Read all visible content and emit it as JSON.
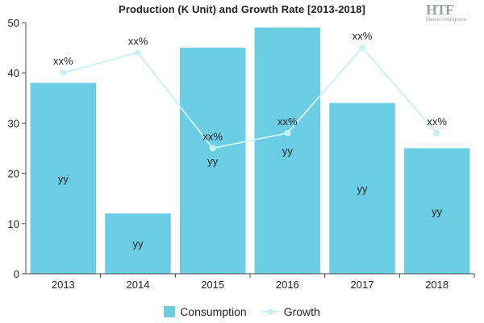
{
  "title": "Production (K Unit) and Growth Rate [2013-2018]",
  "logo": {
    "main": "HTF",
    "sub": "Market Intelligence"
  },
  "colors": {
    "bar": "#6acde4",
    "line": "#c9f0f7",
    "axis": "#444444",
    "text": "#222222"
  },
  "chart_data": {
    "type": "bar",
    "categories": [
      "2013",
      "2014",
      "2015",
      "2016",
      "2017",
      "2018"
    ],
    "series": [
      {
        "name": "Consumption",
        "type": "bar",
        "values": [
          38,
          12,
          45,
          49,
          34,
          25
        ],
        "labels": [
          "yy",
          "yy",
          "yy",
          "yy",
          "yy",
          "yy"
        ]
      },
      {
        "name": "Growth",
        "type": "line",
        "values": [
          40,
          44,
          25,
          28,
          45,
          28
        ],
        "labels": [
          "xx%",
          "xx%",
          "xx%",
          "xx%",
          "xx%",
          "xx%"
        ]
      }
    ],
    "ylim": [
      0,
      50
    ],
    "yticks": [
      0,
      10,
      20,
      30,
      40,
      50
    ],
    "grid": false,
    "legend": "bottom-center"
  },
  "legend": {
    "items": [
      {
        "label": "Consumption"
      },
      {
        "label": "Growth"
      }
    ]
  }
}
